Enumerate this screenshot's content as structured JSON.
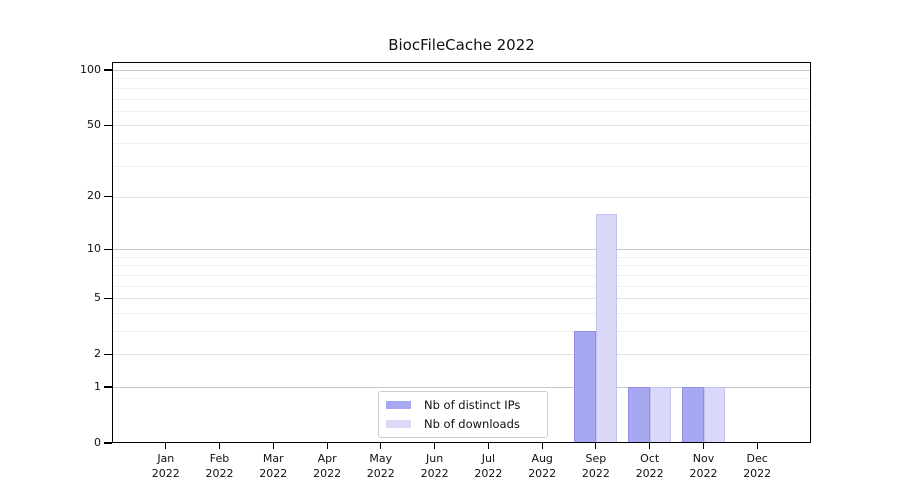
{
  "header": {
    "title": "BiocFileCache 2022"
  },
  "chart_data": {
    "type": "bar",
    "title": "BiocFileCache 2022",
    "x_months": [
      "Jan",
      "Feb",
      "Mar",
      "Apr",
      "May",
      "Jun",
      "Jul",
      "Aug",
      "Sep",
      "Oct",
      "Nov",
      "Dec"
    ],
    "x_year": "2022",
    "categories": [
      "Jan 2022",
      "Feb 2022",
      "Mar 2022",
      "Apr 2022",
      "May 2022",
      "Jun 2022",
      "Jul 2022",
      "Aug 2022",
      "Sep 2022",
      "Oct 2022",
      "Nov 2022",
      "Dec 2022"
    ],
    "series": [
      {
        "name": "Nb of distinct IPs",
        "color": "#a8a8f2",
        "edge_color": "#8f8fe0",
        "values": [
          0,
          0,
          0,
          0,
          0,
          0,
          0,
          0,
          3,
          1,
          1,
          0
        ]
      },
      {
        "name": "Nb of downloads",
        "color": "#dadaf8",
        "edge_color": "#c3c3ef",
        "values": [
          0,
          0,
          0,
          0,
          0,
          0,
          0,
          0,
          16,
          1,
          1,
          0
        ]
      }
    ],
    "y_axis": {
      "scale": "log10(value+1)",
      "tick_labels": [
        "0",
        "1",
        "2",
        "5",
        "10",
        "20",
        "50",
        "100"
      ],
      "major_ticks": [
        0,
        1,
        2,
        5,
        10,
        20,
        50,
        100
      ],
      "decade_gridlines": [
        1,
        10,
        100
      ],
      "minor_gridlines": [
        3,
        4,
        6,
        7,
        8,
        9,
        30,
        40,
        60,
        70,
        80,
        90
      ],
      "max_tick": 100
    },
    "legend": {
      "items": [
        "Nb of distinct IPs",
        "Nb of downloads"
      ],
      "position": "lower center"
    },
    "colors": {
      "decade_grid": "#c6c6c6",
      "major_grid": "#e2e2e2",
      "minor_grid": "#f0f0f0",
      "axis": "#000000",
      "background": "#ffffff",
      "text": "#111111"
    }
  }
}
